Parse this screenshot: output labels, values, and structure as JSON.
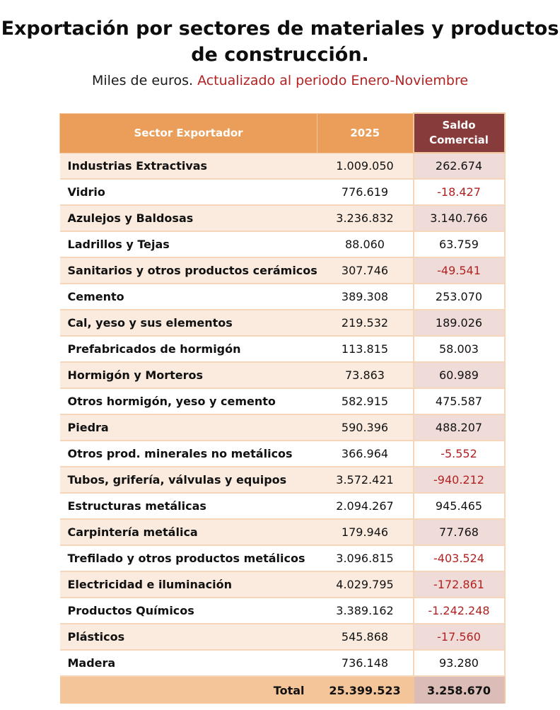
{
  "header": {
    "title_line1": "Exportación por sectores de materiales y productos",
    "title_line2": "de construcción.",
    "subtitle_units": "Miles de euros.",
    "subtitle_period": "Actualizado al periodo Enero-Noviembre"
  },
  "table": {
    "columns": [
      "Sector Exportador",
      "2025",
      "Saldo",
      "Comercial"
    ],
    "rows": [
      {
        "sector": "Industrias Extractivas",
        "value_2025": "1.009.050",
        "saldo": "262.674"
      },
      {
        "sector": "Vidrio",
        "value_2025": "776.619",
        "saldo": "-18.427"
      },
      {
        "sector": "Azulejos y Baldosas",
        "value_2025": "3.236.832",
        "saldo": "3.140.766"
      },
      {
        "sector": "Ladrillos y Tejas",
        "value_2025": "88.060",
        "saldo": "63.759"
      },
      {
        "sector": "Sanitarios y otros productos cerámicos",
        "value_2025": "307.746",
        "saldo": "-49.541"
      },
      {
        "sector": "Cemento",
        "value_2025": "389.308",
        "saldo": "253.070"
      },
      {
        "sector": "Cal, yeso y sus elementos",
        "value_2025": "219.532",
        "saldo": "189.026"
      },
      {
        "sector": "Prefabricados de hormigón",
        "value_2025": "113.815",
        "saldo": "58.003"
      },
      {
        "sector": "Hormigón y Morteros",
        "value_2025": "73.863",
        "saldo": "60.989"
      },
      {
        "sector": "Otros hormigón, yeso y cemento",
        "value_2025": "582.915",
        "saldo": "475.587"
      },
      {
        "sector": "Piedra",
        "value_2025": "590.396",
        "saldo": "488.207"
      },
      {
        "sector": "Otros prod. minerales no metálicos",
        "value_2025": "366.964",
        "saldo": "-5.552"
      },
      {
        "sector": "Tubos, grifería, válvulas y equipos",
        "value_2025": "3.572.421",
        "saldo": "-940.212"
      },
      {
        "sector": "Estructuras metálicas",
        "value_2025": "2.094.267",
        "saldo": "945.465"
      },
      {
        "sector": "Carpintería metálica",
        "value_2025": "179.946",
        "saldo": "77.768"
      },
      {
        "sector": "Trefilado y otros productos metálicos",
        "value_2025": "3.096.815",
        "saldo": "-403.524"
      },
      {
        "sector": "Electricidad e iluminación",
        "value_2025": "4.029.795",
        "saldo": "-172.861"
      },
      {
        "sector": "Productos Químicos",
        "value_2025": "3.389.162",
        "saldo": "-1.242.248"
      },
      {
        "sector": "Plásticos",
        "value_2025": "545.868",
        "saldo": "-17.560"
      },
      {
        "sector": "Madera",
        "value_2025": "736.148",
        "saldo": "93.280"
      }
    ],
    "total": {
      "label": "Total",
      "value_2025": "25.399.523",
      "saldo": "3.258.670"
    }
  },
  "colors": {
    "header_orange": "#eb9e59",
    "header_saldo": "#873b3b",
    "negative_red": "#b22222",
    "total_bg": "#f5c59a"
  }
}
